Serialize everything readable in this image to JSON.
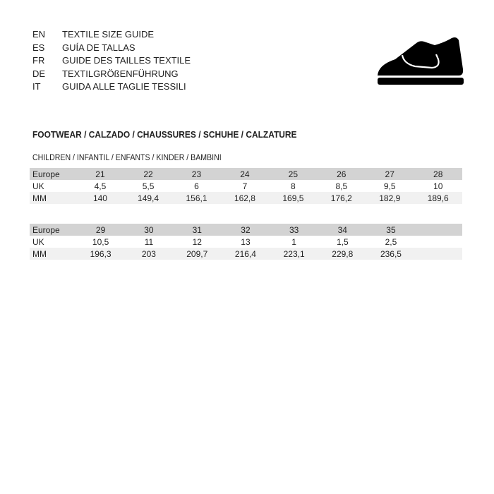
{
  "languages": [
    {
      "code": "EN",
      "title": "TEXTILE SIZE GUIDE"
    },
    {
      "code": "ES",
      "title": "GUÍA DE TALLAS"
    },
    {
      "code": "FR",
      "title": "GUIDE DES TAILLES TEXTILE"
    },
    {
      "code": "DE",
      "title": "TEXTILGRÖßENFÜHRUNG"
    },
    {
      "code": "IT",
      "title": "GUIDA ALLE TAGLIE TESSILI"
    }
  ],
  "icon": "shoe-icon",
  "section_title": "FOOTWEAR / CALZADO / CHAUSSURES / SCHUHE / CALZATURE",
  "subsection_title": "CHILDREN / INFANTIL / ENFANTS / KINDER / BAMBINI",
  "tables": [
    {
      "rows": [
        {
          "label": "Europe",
          "values": [
            "21",
            "22",
            "23",
            "24",
            "25",
            "26",
            "27",
            "28"
          ]
        },
        {
          "label": "UK",
          "values": [
            "4,5",
            "5,5",
            "6",
            "7",
            "8",
            "8,5",
            "9,5",
            "10"
          ]
        },
        {
          "label": "MM",
          "values": [
            "140",
            "149,4",
            "156,1",
            "162,8",
            "169,5",
            "176,2",
            "182,9",
            "189,6"
          ]
        }
      ]
    },
    {
      "rows": [
        {
          "label": "Europe",
          "values": [
            "29",
            "30",
            "31",
            "32",
            "33",
            "34",
            "35",
            ""
          ]
        },
        {
          "label": "UK",
          "values": [
            "10,5",
            "11",
            "12",
            "13",
            "1",
            "1,5",
            "2,5",
            ""
          ]
        },
        {
          "label": "MM",
          "values": [
            "196,3",
            "203",
            "209,7",
            "216,4",
            "223,1",
            "229,8",
            "236,5",
            ""
          ]
        }
      ]
    }
  ]
}
